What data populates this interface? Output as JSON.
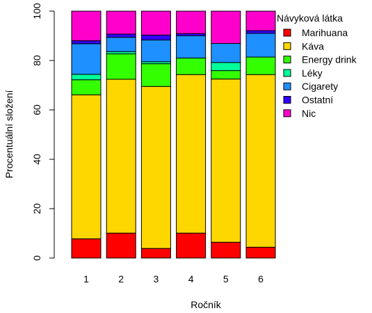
{
  "chart_data": {
    "type": "bar",
    "stacked": true,
    "categories": [
      "1",
      "2",
      "3",
      "4",
      "5",
      "6"
    ],
    "xlabel": "Ročník",
    "ylabel": "Procentuální složení",
    "ylim": [
      0,
      100
    ],
    "yticks": [
      "0",
      "20",
      "40",
      "60",
      "80",
      "100"
    ],
    "legend_title": "Návyková látka",
    "legend_position": "right",
    "series": [
      {
        "name": "Marihuana",
        "color": "#FF0000",
        "values": [
          7.8,
          10.1,
          3.9,
          10.1,
          6.4,
          4.4
        ]
      },
      {
        "name": "Káva",
        "color": "#FFD700",
        "values": [
          58.3,
          62.3,
          65.6,
          64.2,
          66.1,
          69.9
        ]
      },
      {
        "name": "Energy drink",
        "color": "#33FF00",
        "values": [
          6.1,
          10.3,
          9.2,
          6.7,
          3.4,
          7.1
        ]
      },
      {
        "name": "Léky",
        "color": "#00FF99",
        "values": [
          2.2,
          0.9,
          0.8,
          0.0,
          3.3,
          0.0
        ]
      },
      {
        "name": "Cigarety",
        "color": "#1E90FF",
        "values": [
          12.4,
          5.8,
          8.8,
          9.0,
          7.7,
          9.6
        ]
      },
      {
        "name": "Ostatní",
        "color": "#3300FF",
        "values": [
          1.2,
          1.3,
          2.0,
          0.9,
          0.0,
          1.1
        ]
      },
      {
        "name": "Nic",
        "color": "#FF00CC",
        "values": [
          12.0,
          9.3,
          9.7,
          9.1,
          13.1,
          7.9
        ]
      }
    ]
  }
}
